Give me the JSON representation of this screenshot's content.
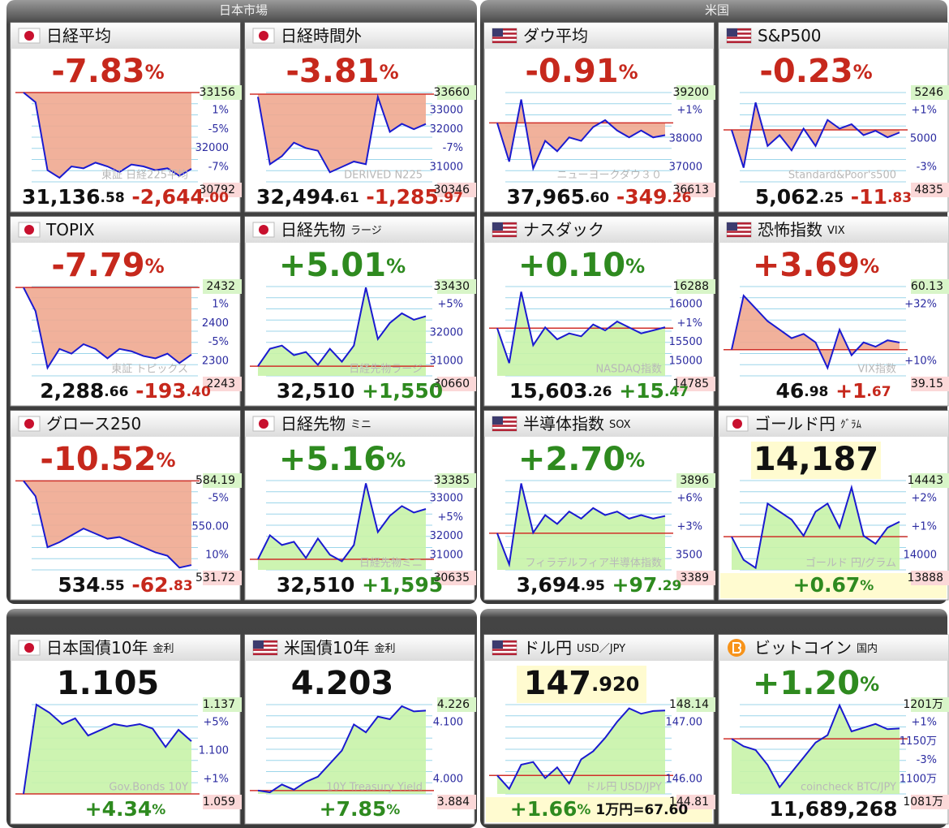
{
  "sections": [
    {
      "title": "日本市場",
      "cards": [
        {
          "flag": "jp",
          "name": "日経平均",
          "headline": [
            {
              "t": "-7.83",
              "c": "red",
              "s": 0
            },
            {
              "t": "%",
              "c": "red",
              "s": 1
            }
          ],
          "footer": [
            {
              "t": "31,136",
              "c": "black",
              "s": 0
            },
            {
              "t": ".58",
              "c": "black",
              "s": 1
            },
            {
              "t": " -2,644",
              "c": "red",
              "s": 0
            },
            {
              "t": ".00",
              "c": "red",
              "s": 1
            }
          ],
          "high": 33156,
          "low": 30792,
          "base": 33156,
          "scale": [
            "1%",
            "-5%",
            "32000",
            "-7%"
          ],
          "mark": "東証 日経225平均",
          "spark": [
            33156,
            32900,
            31100,
            30900,
            31200,
            31150,
            31300,
            31200,
            31050,
            31250,
            31200,
            31100,
            31150,
            30950,
            31136
          ]
        },
        {
          "flag": "jp",
          "name": "日経時間外",
          "headline": [
            {
              "t": "-3.81",
              "c": "red",
              "s": 0
            },
            {
              "t": "%",
              "c": "red",
              "s": 1
            }
          ],
          "footer": [
            {
              "t": "32,494",
              "c": "black",
              "s": 0
            },
            {
              "t": ".61",
              "c": "black",
              "s": 1
            },
            {
              "t": " -1,285",
              "c": "red",
              "s": 0
            },
            {
              "t": ".97",
              "c": "red",
              "s": 1
            }
          ],
          "high": 33660,
          "low": 30346,
          "base": 33600,
          "scale": [
            "33000",
            "32000",
            "-7%",
            "31000"
          ],
          "mark": "DERIVED N225",
          "spark": [
            33500,
            31000,
            31300,
            31800,
            31600,
            31500,
            30700,
            30900,
            31100,
            31000,
            33500,
            32200,
            32500,
            32300,
            32494
          ]
        },
        {
          "flag": "jp",
          "name": "TOPIX",
          "headline": [
            {
              "t": "-7.79",
              "c": "red",
              "s": 0
            },
            {
              "t": "%",
              "c": "red",
              "s": 1
            }
          ],
          "footer": [
            {
              "t": "2,288",
              "c": "black",
              "s": 0
            },
            {
              "t": ".66",
              "c": "black",
              "s": 1
            },
            {
              "t": " -193",
              "c": "red",
              "s": 0
            },
            {
              "t": ".40",
              "c": "red",
              "s": 1
            }
          ],
          "high": 2432,
          "low": 2243,
          "base": 2430,
          "scale": [
            "1%",
            "2400",
            "-5%",
            "2300"
          ],
          "mark": "東証 トピックス",
          "spark": [
            2430,
            2380,
            2260,
            2300,
            2290,
            2310,
            2300,
            2280,
            2300,
            2295,
            2285,
            2280,
            2290,
            2270,
            2288
          ]
        },
        {
          "flag": "jp",
          "name": "日経先物",
          "sub": "ラージ",
          "headline": [
            {
              "t": "+5.01",
              "c": "green",
              "s": 0
            },
            {
              "t": "%",
              "c": "green",
              "s": 1
            }
          ],
          "footer": [
            {
              "t": "32,510",
              "c": "black",
              "s": 0
            },
            {
              "t": " +1,550",
              "c": "green",
              "s": 0
            }
          ],
          "high": 33430,
          "low": 30660,
          "base": 30960,
          "scale": [
            "+5%",
            "32000",
            "31000"
          ],
          "mark": "日経先物ラージ",
          "spark": [
            30960,
            31500,
            31600,
            31300,
            31400,
            31000,
            31500,
            31100,
            31600,
            33400,
            31800,
            32300,
            32600,
            32400,
            32510
          ]
        },
        {
          "flag": "jp",
          "name": "グロース250",
          "headline": [
            {
              "t": "-10.52",
              "c": "red",
              "s": 0
            },
            {
              "t": "%",
              "c": "red",
              "s": 1
            }
          ],
          "footer": [
            {
              "t": "534",
              "c": "black",
              "s": 0
            },
            {
              "t": ".55",
              "c": "black",
              "s": 1
            },
            {
              "t": " -62",
              "c": "red",
              "s": 0
            },
            {
              "t": ".83",
              "c": "red",
              "s": 1
            }
          ],
          "high": 584.19,
          "low": 531.72,
          "base": 584,
          "scale": [
            "-5%",
            "550.00",
            "10%"
          ],
          "spark": [
            584,
            575,
            545,
            548,
            552,
            556,
            553,
            550,
            551,
            548,
            545,
            542,
            540,
            533,
            534.55
          ]
        },
        {
          "flag": "jp",
          "name": "日経先物",
          "sub": "ミニ",
          "headline": [
            {
              "t": "+5.16",
              "c": "green",
              "s": 0
            },
            {
              "t": "%",
              "c": "green",
              "s": 1
            }
          ],
          "footer": [
            {
              "t": "32,510",
              "c": "black",
              "s": 0
            },
            {
              "t": " +1,595",
              "c": "green",
              "s": 0
            }
          ],
          "high": 33385,
          "low": 30635,
          "base": 30960,
          "scale": [
            "33000",
            "+5%",
            "32000",
            "31000"
          ],
          "mark": "日経先物ミニ",
          "spark": [
            30960,
            31700,
            31400,
            31500,
            31000,
            31600,
            31100,
            30900,
            31400,
            33300,
            31800,
            32300,
            32600,
            32400,
            32510
          ]
        }
      ]
    },
    {
      "title": "米国",
      "cards": [
        {
          "flag": "us",
          "name": "ダウ平均",
          "headline": [
            {
              "t": "-0.91",
              "c": "red",
              "s": 0
            },
            {
              "t": "%",
              "c": "red",
              "s": 1
            }
          ],
          "footer": [
            {
              "t": "37,965",
              "c": "black",
              "s": 0
            },
            {
              "t": ".60",
              "c": "black",
              "s": 1
            },
            {
              "t": " -349",
              "c": "red",
              "s": 0
            },
            {
              "t": ".26",
              "c": "red",
              "s": 1
            }
          ],
          "high": 39200,
          "low": 36613,
          "base": 38320,
          "scale": [
            "+1%",
            "38000",
            "37000"
          ],
          "mark": "ニューヨークダウ３０",
          "spark": [
            38320,
            37200,
            39000,
            37000,
            37800,
            37500,
            37900,
            37800,
            38200,
            38400,
            38100,
            37900,
            38100,
            37900,
            37965
          ]
        },
        {
          "flag": "us",
          "name": "S&P500",
          "headline": [
            {
              "t": "-0.23",
              "c": "red",
              "s": 0
            },
            {
              "t": "%",
              "c": "red",
              "s": 1
            }
          ],
          "footer": [
            {
              "t": "5,062",
              "c": "black",
              "s": 0
            },
            {
              "t": ".25",
              "c": "black",
              "s": 1
            },
            {
              "t": " -11",
              "c": "red",
              "s": 0
            },
            {
              "t": ".83",
              "c": "red",
              "s": 1
            }
          ],
          "high": 5246,
          "low": 4835,
          "base": 5074,
          "scale": [
            "+1%",
            "5000",
            "-3%"
          ],
          "mark": "Standard&Poor's500",
          "spark": [
            5074,
            4900,
            5200,
            5000,
            5050,
            4980,
            5080,
            5000,
            5120,
            5080,
            5100,
            5050,
            5070,
            5040,
            5062
          ]
        },
        {
          "flag": "us",
          "name": "ナスダック",
          "headline": [
            {
              "t": "+0.10",
              "c": "green",
              "s": 0
            },
            {
              "t": "%",
              "c": "green",
              "s": 1
            }
          ],
          "footer": [
            {
              "t": "15,603",
              "c": "black",
              "s": 0
            },
            {
              "t": ".26",
              "c": "black",
              "s": 1
            },
            {
              "t": " +15",
              "c": "green",
              "s": 0
            },
            {
              "t": ".47",
              "c": "green",
              "s": 1
            }
          ],
          "high": 16288,
          "low": 14785,
          "base": 15588,
          "scale": [
            "16000",
            "+1%",
            "15500",
            "15000"
          ],
          "mark": "NASDAQ指数",
          "spark": [
            15588,
            15000,
            16200,
            15300,
            15600,
            15400,
            15500,
            15450,
            15650,
            15550,
            15700,
            15600,
            15500,
            15550,
            15603
          ]
        },
        {
          "flag": "us",
          "name": "恐怖指数",
          "sub": "VIX",
          "headline": [
            {
              "t": "+3.69",
              "c": "red",
              "s": 0
            },
            {
              "t": "%",
              "c": "red",
              "s": 1
            }
          ],
          "footer": [
            {
              "t": "46",
              "c": "black",
              "s": 0
            },
            {
              "t": ".98",
              "c": "black",
              "s": 1
            },
            {
              "t": " +1",
              "c": "red",
              "s": 0
            },
            {
              "t": ".67",
              "c": "red",
              "s": 1
            }
          ],
          "high": 60.13,
          "low": 39.15,
          "base": 45.3,
          "scale": [
            "+32%",
            "+10%"
          ],
          "mark": "VIX指数",
          "spark": [
            45.3,
            58,
            55,
            52,
            50,
            48,
            49,
            47,
            41,
            50,
            44,
            47,
            46,
            47.5,
            46.98
          ]
        },
        {
          "flag": "us",
          "name": "半導体指数",
          "sub": "SOX",
          "headline": [
            {
              "t": "+2.70",
              "c": "green",
              "s": 0
            },
            {
              "t": "%",
              "c": "green",
              "s": 1
            }
          ],
          "footer": [
            {
              "t": "3,694",
              "c": "black",
              "s": 0
            },
            {
              "t": ".95",
              "c": "black",
              "s": 1
            },
            {
              "t": " +97",
              "c": "green",
              "s": 0
            },
            {
              "t": ".29",
              "c": "green",
              "s": 1
            }
          ],
          "high": 3896,
          "low": 3389,
          "base": 3597,
          "scale": [
            "+6%",
            "+3%",
            "3500"
          ],
          "mark": "フィラデルフィア半導体指数",
          "spark": [
            3597,
            3420,
            3880,
            3600,
            3700,
            3650,
            3720,
            3680,
            3740,
            3700,
            3720,
            3680,
            3700,
            3680,
            3694.95
          ]
        },
        {
          "flag": "jp",
          "name": "ゴールド円",
          "sub": "ｸﾞﾗﾑ",
          "highlight": true,
          "headline": [
            {
              "t": "14,187",
              "c": "black",
              "s": 0
            }
          ],
          "footer": [
            {
              "t": "+0.67",
              "c": "green",
              "s": 0
            },
            {
              "t": "%",
              "c": "green",
              "s": 1
            }
          ],
          "high": 14443,
          "low": 13888,
          "base": 14094,
          "scale": [
            "+2%",
            "+1%",
            "14000"
          ],
          "mark": "ゴールド 円/グラム",
          "spark": [
            14094,
            13950,
            13900,
            14300,
            14250,
            14200,
            14100,
            14250,
            14300,
            14150,
            14400,
            14100,
            14050,
            14150,
            14187
          ]
        }
      ]
    },
    {
      "cards": [
        {
          "flag": "jp",
          "name": "日本国債10年",
          "sub": "金利",
          "headline": [
            {
              "t": "1.105",
              "c": "black",
              "s": 0
            }
          ],
          "footer": [
            {
              "t": "+4.34",
              "c": "green",
              "s": 0
            },
            {
              "t": "%",
              "c": "green",
              "s": 1
            }
          ],
          "high": 1.137,
          "low": 1.059,
          "base": 1.059,
          "scale": [
            "+5%",
            "1.100",
            "+1%"
          ],
          "mark": "Gov.Bonds 10Y",
          "spark": [
            1.059,
            1.137,
            1.13,
            1.12,
            1.125,
            1.11,
            1.115,
            1.12,
            1.118,
            1.12,
            1.116,
            1.1,
            1.115,
            1.105
          ]
        },
        {
          "flag": "us",
          "name": "米国債10年",
          "sub": "金利",
          "headline": [
            {
              "t": "4.203",
              "c": "black",
              "s": 0
            }
          ],
          "footer": [
            {
              "t": "+7.85",
              "c": "green",
              "s": 0
            },
            {
              "t": "%",
              "c": "green",
              "s": 1
            }
          ],
          "high": 4.226,
          "low": 3.884,
          "base": 3.897,
          "scale": [
            "4.100",
            "4.000"
          ],
          "mark": "10Y Treasury Yield",
          "spark": [
            3.897,
            3.89,
            3.92,
            3.9,
            3.93,
            3.95,
            4.0,
            4.05,
            4.15,
            4.12,
            4.18,
            4.17,
            4.22,
            4.2,
            4.203
          ]
        },
        {
          "flag": "us",
          "name": "ドル円",
          "sub": "USD／JPY",
          "highlight": true,
          "headline": [
            {
              "t": "147",
              "c": "black",
              "s": 0
            },
            {
              "t": ".920",
              "c": "black",
              "s": 1
            }
          ],
          "footer": [
            {
              "t": "+1.66",
              "c": "green",
              "s": 0
            },
            {
              "t": "% ",
              "c": "green",
              "s": 1
            },
            {
              "t": "1万円=67.60",
              "c": "black",
              "s": 1
            }
          ],
          "high": 148.14,
          "low": 144.81,
          "base": 145.5,
          "scale": [
            "147.00",
            "146.00"
          ],
          "mark": "ドル円 USD/JPY",
          "spark": [
            145.5,
            145.0,
            145.9,
            146.0,
            145.4,
            145.8,
            145.2,
            146.1,
            146.4,
            146.9,
            147.5,
            148.0,
            147.8,
            147.9,
            147.92
          ]
        },
        {
          "flag": "btc",
          "name": "ビットコイン",
          "sub": "国内",
          "headline": [
            {
              "t": "+1.20",
              "c": "green",
              "s": 0
            },
            {
              "t": "%",
              "c": "green",
              "s": 1
            }
          ],
          "footer": [
            {
              "t": "11,689,268",
              "c": "black",
              "s": 0
            }
          ],
          "high": {
            "value": 1201,
            "label": "1201万"
          },
          "low": {
            "value": 1081,
            "label": "1081万"
          },
          "base": 1155,
          "scale": [
            "+1%",
            "1150万",
            "-3%",
            "1100万"
          ],
          "mark": "coincheck BTC/JPY",
          "spark": [
            1155,
            1145,
            1140,
            1120,
            1090,
            1110,
            1130,
            1150,
            1160,
            1200,
            1165,
            1170,
            1175,
            1168,
            1169
          ]
        }
      ]
    }
  ]
}
